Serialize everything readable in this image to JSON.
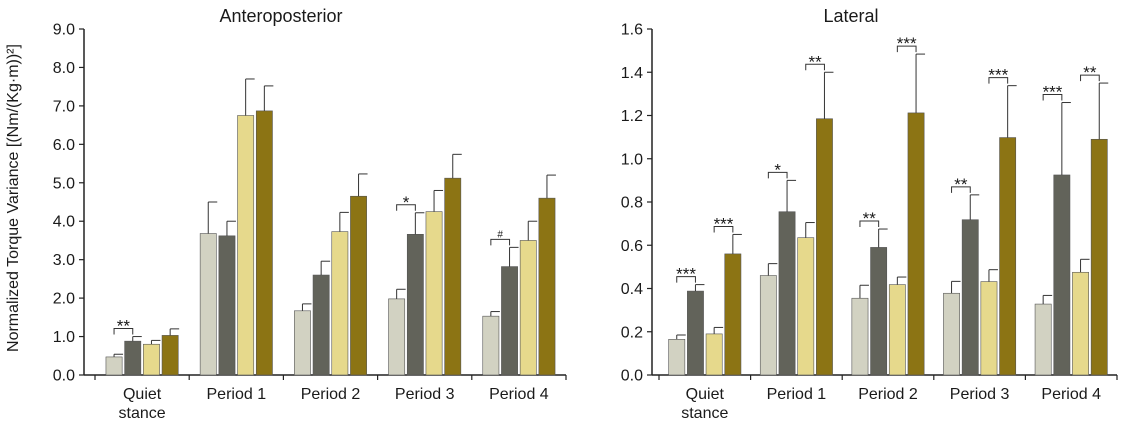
{
  "ylabel": "Normalized Torque Variance [(Nm/(Kg·m))²]",
  "colors": [
    "#d2d2c2",
    "#62635a",
    "#e6d98c",
    "#8c7414"
  ],
  "chart_data": [
    {
      "type": "bar",
      "title": "Anteroposterior",
      "ylabel": "Normalized Torque Variance [(Nm/(Kg·m))²]",
      "ylim": [
        0,
        9
      ],
      "yticks": [
        "0.0",
        "1.0",
        "2.0",
        "3.0",
        "4.0",
        "5.0",
        "6.0",
        "7.0",
        "8.0",
        "9.0"
      ],
      "categories": [
        [
          "Quiet",
          "stance"
        ],
        [
          "Period 1"
        ],
        [
          "Period 2"
        ],
        [
          "Period 3"
        ],
        [
          "Period 4"
        ]
      ],
      "series": [
        {
          "values": [
            0.47,
            3.68,
            1.67,
            1.98,
            1.53
          ],
          "errors": [
            0.07,
            0.82,
            0.18,
            0.25,
            0.12
          ]
        },
        {
          "values": [
            0.88,
            3.62,
            2.6,
            3.66,
            2.82
          ],
          "errors": [
            0.12,
            0.38,
            0.36,
            0.56,
            0.5
          ]
        },
        {
          "values": [
            0.8,
            6.75,
            3.73,
            4.25,
            3.5
          ],
          "errors": [
            0.1,
            0.95,
            0.5,
            0.55,
            0.5
          ]
        },
        {
          "values": [
            1.03,
            6.87,
            4.65,
            5.12,
            4.6
          ],
          "errors": [
            0.17,
            0.65,
            0.58,
            0.62,
            0.6
          ]
        }
      ],
      "annotations": [
        {
          "category": 0,
          "from": 0,
          "to": 1,
          "label": "**"
        },
        {
          "category": 3,
          "from": 0,
          "to": 1,
          "label": "*"
        },
        {
          "category": 4,
          "from": 0,
          "to": 1,
          "label": "#"
        }
      ],
      "grid": false
    },
    {
      "type": "bar",
      "title": "Lateral",
      "ylim": [
        0,
        1.6
      ],
      "yticks": [
        "0.0",
        "0.2",
        "0.4",
        "0.6",
        "0.8",
        "1.0",
        "1.2",
        "1.4",
        "1.6"
      ],
      "categories": [
        [
          "Quiet",
          "stance"
        ],
        [
          "Period 1"
        ],
        [
          "Period 2"
        ],
        [
          "Period 3"
        ],
        [
          "Period 4"
        ]
      ],
      "series": [
        {
          "values": [
            0.165,
            0.46,
            0.355,
            0.378,
            0.328
          ],
          "errors": [
            0.02,
            0.055,
            0.06,
            0.055,
            0.04
          ]
        },
        {
          "values": [
            0.388,
            0.755,
            0.59,
            0.718,
            0.925
          ],
          "errors": [
            0.03,
            0.145,
            0.085,
            0.115,
            0.335
          ]
        },
        {
          "values": [
            0.19,
            0.635,
            0.418,
            0.432,
            0.475
          ],
          "errors": [
            0.03,
            0.07,
            0.035,
            0.055,
            0.06
          ]
        },
        {
          "values": [
            0.56,
            1.185,
            1.212,
            1.098,
            1.09
          ],
          "errors": [
            0.09,
            0.215,
            0.272,
            0.24,
            0.26
          ]
        }
      ],
      "annotations": [
        {
          "category": 0,
          "from": 0,
          "to": 1,
          "label": "***"
        },
        {
          "category": 0,
          "from": 2,
          "to": 3,
          "label": "***"
        },
        {
          "category": 1,
          "from": 0,
          "to": 1,
          "label": "*"
        },
        {
          "category": 1,
          "from": 2,
          "to": 3,
          "label": "**"
        },
        {
          "category": 2,
          "from": 0,
          "to": 1,
          "label": "**"
        },
        {
          "category": 2,
          "from": 2,
          "to": 3,
          "label": "***"
        },
        {
          "category": 3,
          "from": 0,
          "to": 1,
          "label": "**"
        },
        {
          "category": 3,
          "from": 2,
          "to": 3,
          "label": "***"
        },
        {
          "category": 4,
          "from": 0,
          "to": 1,
          "label": "***"
        },
        {
          "category": 4,
          "from": 2,
          "to": 3,
          "label": "**"
        }
      ],
      "grid": false
    }
  ]
}
